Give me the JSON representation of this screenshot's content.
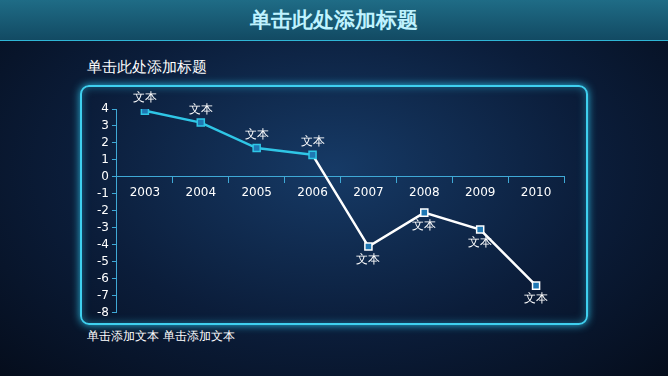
{
  "header": {
    "title": "单击此处添加标题"
  },
  "chart_data": {
    "type": "line",
    "title": "单击此处添加标题",
    "categories": [
      "2003",
      "2004",
      "2005",
      "2006",
      "2007",
      "2008",
      "2009",
      "2010"
    ],
    "values": [
      3.9,
      3.2,
      1.7,
      1.3,
      -4.1,
      -2.1,
      -3.1,
      -6.4
    ],
    "colors": [
      "#2fc6e6",
      "#2fc6e6",
      "#2fc6e6",
      "#2fc6e6",
      "#ffffff",
      "#ffffff",
      "#ffffff",
      "#ffffff"
    ],
    "marker": "square",
    "annotations": [
      "文本",
      "文本",
      "文本",
      "文本",
      "文本",
      "文本",
      "文本",
      "文本"
    ],
    "ylim": [
      -8,
      4
    ],
    "yticks": [
      -8,
      -7,
      -6,
      -5,
      -4,
      -3,
      -2,
      -1,
      0,
      1,
      2,
      3,
      4
    ],
    "grid": false
  },
  "footer": "单击添加文本 单击添加文本"
}
